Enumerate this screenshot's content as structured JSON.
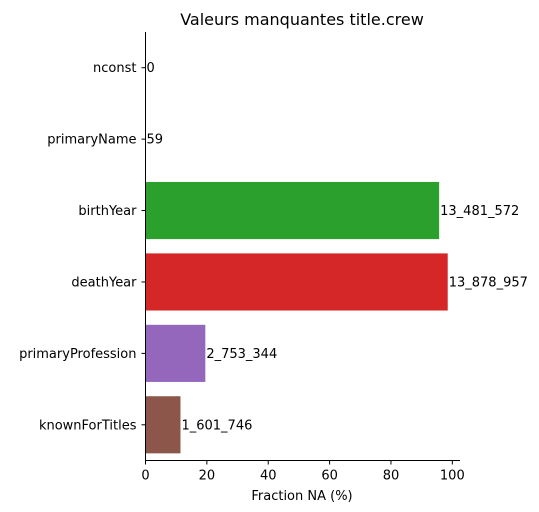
{
  "chart_data": {
    "type": "bar",
    "orientation": "horizontal",
    "title": "Valeurs manquantes title.crew",
    "xlabel": "Fraction NA (%)",
    "ylabel": "",
    "xlim": [
      0,
      102.5
    ],
    "xticks": [
      0,
      20,
      40,
      60,
      80,
      100
    ],
    "grid": false,
    "categories": [
      "nconst",
      "primaryName",
      "birthYear",
      "deathYear",
      "primaryProfession",
      "knownForTitles"
    ],
    "values": [
      0,
      0.0004,
      95.7,
      98.5,
      19.5,
      11.4
    ],
    "labels": [
      "0",
      "59",
      "13_481_572",
      "13_878_957",
      "2_753_344",
      "1_601_746"
    ],
    "colors": [
      "#1f77b4",
      "#ff7f0e",
      "#2ca02c",
      "#d62728",
      "#9467bd",
      "#8c564b"
    ]
  }
}
